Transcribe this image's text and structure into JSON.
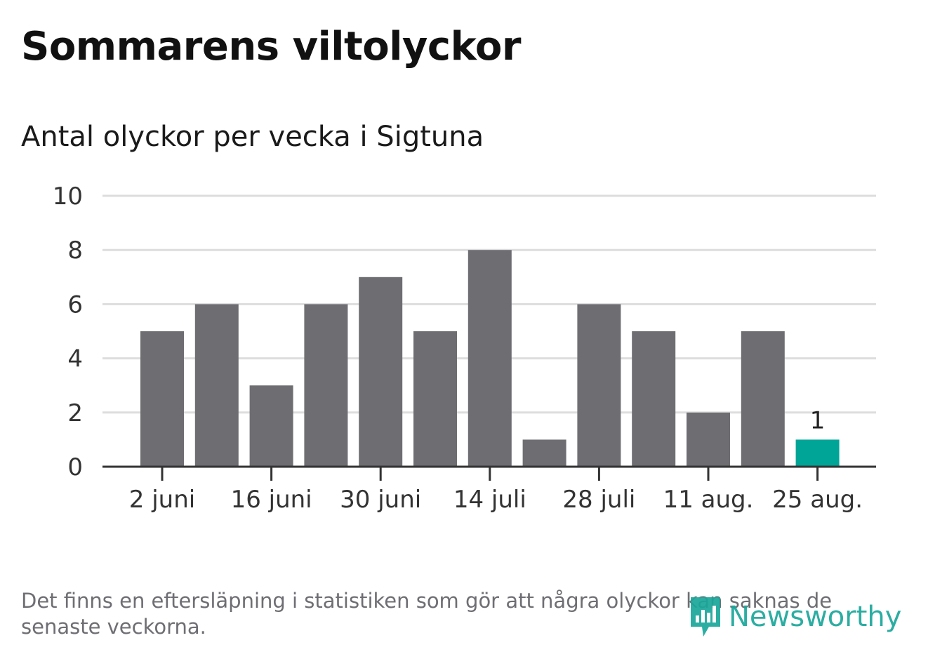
{
  "title": "Sommarens viltolyckor",
  "subtitle": "Antal olyckor per vecka i Sigtuna",
  "footnote": "Det finns en eftersläpning i statistiken som gör att några olyckor kan saknas de senaste veckorna.",
  "logo_text": "Newsworthy",
  "colors": {
    "bar": "#6e6d72",
    "highlight": "#00a597",
    "grid": "#dddddd",
    "axis": "#333333",
    "logo": "#1ba79b"
  },
  "chart_data": {
    "type": "bar",
    "title": "Antal olyckor per vecka i Sigtuna",
    "xlabel": "",
    "ylabel": "",
    "ylim": [
      0,
      10
    ],
    "yticks": [
      0,
      2,
      4,
      6,
      8,
      10
    ],
    "grid": true,
    "weeks": 13,
    "x_tick_labels": [
      "2 juni",
      "16 juni",
      "30 juni",
      "14 juli",
      "28 juli",
      "11 aug.",
      "25 aug."
    ],
    "x_tick_label_weeks": [
      1,
      3,
      5,
      7,
      9,
      11,
      13
    ],
    "values": [
      5,
      6,
      3,
      6,
      7,
      5,
      8,
      1,
      6,
      5,
      2,
      5,
      1
    ],
    "highlight_index": 12,
    "data_labels": [
      {
        "index": 12,
        "text": "1"
      }
    ]
  }
}
